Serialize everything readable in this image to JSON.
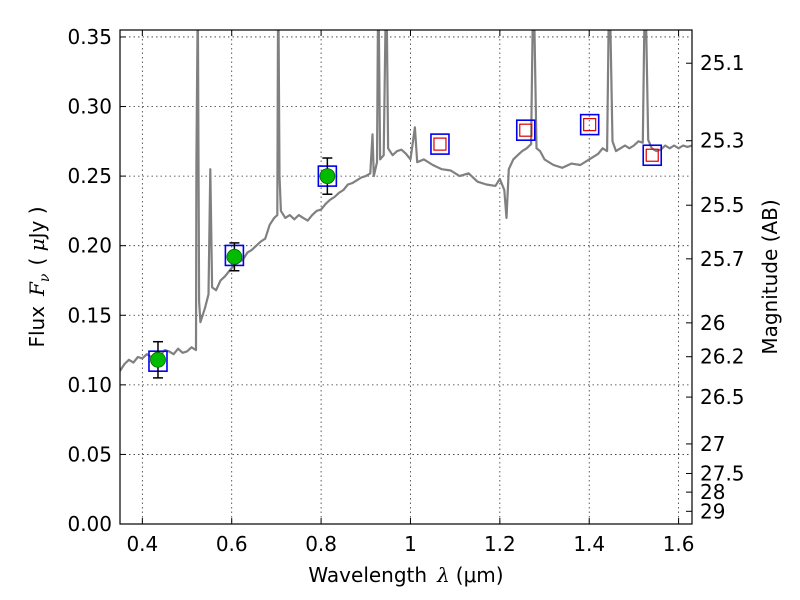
{
  "chart_data": {
    "type": "scatter",
    "x_axis": {
      "label_prefix": "Wavelength",
      "label_symbol": "λ",
      "label_unit": "(μm)",
      "range": [
        0.35,
        1.63
      ],
      "ticks": [
        {
          "value": 0.4,
          "label": "0.4"
        },
        {
          "value": 0.6,
          "label": "0.6"
        },
        {
          "value": 0.8,
          "label": "0.8"
        },
        {
          "value": 1.0,
          "label": "1"
        },
        {
          "value": 1.2,
          "label": "1.2"
        },
        {
          "value": 1.4,
          "label": "1.4"
        },
        {
          "value": 1.6,
          "label": "1.6"
        }
      ]
    },
    "y_axis": {
      "label_prefix": "Flux",
      "label_symbol": "F",
      "label_subscript": "ν",
      "label_unit_open": "( ",
      "label_unit_mu": "μ",
      "label_unit_rest": "Jy )",
      "range": [
        0.0,
        0.355
      ],
      "ticks": [
        {
          "value": 0.0,
          "label": "0.00"
        },
        {
          "value": 0.05,
          "label": "0.05"
        },
        {
          "value": 0.1,
          "label": "0.10"
        },
        {
          "value": 0.15,
          "label": "0.15"
        },
        {
          "value": 0.2,
          "label": "0.20"
        },
        {
          "value": 0.25,
          "label": "0.25"
        },
        {
          "value": 0.3,
          "label": "0.30"
        },
        {
          "value": 0.35,
          "label": "0.35"
        }
      ]
    },
    "y2_axis": {
      "label": "Magnitude (AB)",
      "ticks": [
        {
          "mag": 25.1,
          "label": "25.1"
        },
        {
          "mag": 25.3,
          "label": "25.3"
        },
        {
          "mag": 25.5,
          "label": "25.5"
        },
        {
          "mag": 25.7,
          "label": "25.7"
        },
        {
          "mag": 26.0,
          "label": "26"
        },
        {
          "mag": 26.2,
          "label": "26.2"
        },
        {
          "mag": 26.5,
          "label": "26.5"
        },
        {
          "mag": 27.0,
          "label": "27"
        },
        {
          "mag": 27.5,
          "label": "27.5"
        },
        {
          "mag": 28.0,
          "label": "28"
        },
        {
          "mag": 29.0,
          "label": "29"
        }
      ]
    },
    "grid": true,
    "colors": {
      "template": "#808080",
      "model_marker": "#0000ee",
      "detection": "#00bb00",
      "upper_limit": "#dd0000",
      "error_bar": "#000000"
    },
    "template_spectrum": [
      [
        0.35,
        0.11
      ],
      [
        0.36,
        0.115
      ],
      [
        0.37,
        0.118
      ],
      [
        0.38,
        0.116
      ],
      [
        0.39,
        0.12
      ],
      [
        0.4,
        0.119
      ],
      [
        0.41,
        0.122
      ],
      [
        0.42,
        0.12
      ],
      [
        0.43,
        0.123
      ],
      [
        0.44,
        0.121
      ],
      [
        0.45,
        0.125
      ],
      [
        0.46,
        0.124
      ],
      [
        0.47,
        0.122
      ],
      [
        0.48,
        0.126
      ],
      [
        0.49,
        0.123
      ],
      [
        0.5,
        0.124
      ],
      [
        0.51,
        0.127
      ],
      [
        0.52,
        0.125
      ],
      [
        0.521,
        0.26
      ],
      [
        0.524,
        0.38
      ],
      [
        0.527,
        0.16
      ],
      [
        0.53,
        0.145
      ],
      [
        0.54,
        0.155
      ],
      [
        0.548,
        0.165
      ],
      [
        0.552,
        0.255
      ],
      [
        0.556,
        0.17
      ],
      [
        0.565,
        0.168
      ],
      [
        0.575,
        0.175
      ],
      [
        0.585,
        0.178
      ],
      [
        0.595,
        0.182
      ],
      [
        0.605,
        0.186
      ],
      [
        0.615,
        0.188
      ],
      [
        0.625,
        0.19
      ],
      [
        0.635,
        0.195
      ],
      [
        0.645,
        0.197
      ],
      [
        0.655,
        0.2
      ],
      [
        0.665,
        0.203
      ],
      [
        0.675,
        0.205
      ],
      [
        0.685,
        0.215
      ],
      [
        0.695,
        0.22
      ],
      [
        0.702,
        0.222
      ],
      [
        0.704,
        0.4
      ],
      [
        0.707,
        0.25
      ],
      [
        0.71,
        0.225
      ],
      [
        0.72,
        0.22
      ],
      [
        0.73,
        0.222
      ],
      [
        0.74,
        0.219
      ],
      [
        0.75,
        0.222
      ],
      [
        0.76,
        0.22
      ],
      [
        0.77,
        0.218
      ],
      [
        0.78,
        0.222
      ],
      [
        0.79,
        0.225
      ],
      [
        0.8,
        0.226
      ],
      [
        0.81,
        0.23
      ],
      [
        0.82,
        0.233
      ],
      [
        0.83,
        0.235
      ],
      [
        0.84,
        0.238
      ],
      [
        0.85,
        0.24
      ],
      [
        0.86,
        0.244
      ],
      [
        0.87,
        0.245
      ],
      [
        0.88,
        0.247
      ],
      [
        0.89,
        0.249
      ],
      [
        0.9,
        0.25
      ],
      [
        0.91,
        0.252
      ],
      [
        0.915,
        0.28
      ],
      [
        0.918,
        0.25
      ],
      [
        0.925,
        0.26
      ],
      [
        0.928,
        0.4
      ],
      [
        0.932,
        0.262
      ],
      [
        0.94,
        0.265
      ],
      [
        0.946,
        0.4
      ],
      [
        0.95,
        0.27
      ],
      [
        0.96,
        0.265
      ],
      [
        0.97,
        0.268
      ],
      [
        0.98,
        0.269
      ],
      [
        0.99,
        0.266
      ],
      [
        1.0,
        0.262
      ],
      [
        1.01,
        0.285
      ],
      [
        1.015,
        0.26
      ],
      [
        1.03,
        0.262
      ],
      [
        1.05,
        0.258
      ],
      [
        1.07,
        0.255
      ],
      [
        1.09,
        0.254
      ],
      [
        1.11,
        0.25
      ],
      [
        1.13,
        0.252
      ],
      [
        1.15,
        0.246
      ],
      [
        1.17,
        0.244
      ],
      [
        1.19,
        0.243
      ],
      [
        1.2,
        0.248
      ],
      [
        1.21,
        0.24
      ],
      [
        1.215,
        0.22
      ],
      [
        1.22,
        0.255
      ],
      [
        1.23,
        0.262
      ],
      [
        1.24,
        0.265
      ],
      [
        1.25,
        0.268
      ],
      [
        1.26,
        0.27
      ],
      [
        1.27,
        0.273
      ],
      [
        1.275,
        0.4
      ],
      [
        1.282,
        0.27
      ],
      [
        1.29,
        0.268
      ],
      [
        1.3,
        0.262
      ],
      [
        1.32,
        0.258
      ],
      [
        1.34,
        0.256
      ],
      [
        1.36,
        0.259
      ],
      [
        1.38,
        0.258
      ],
      [
        1.4,
        0.262
      ],
      [
        1.42,
        0.266
      ],
      [
        1.43,
        0.27
      ],
      [
        1.44,
        0.268
      ],
      [
        1.445,
        0.4
      ],
      [
        1.452,
        0.275
      ],
      [
        1.46,
        0.268
      ],
      [
        1.47,
        0.27
      ],
      [
        1.48,
        0.272
      ],
      [
        1.49,
        0.27
      ],
      [
        1.5,
        0.272
      ],
      [
        1.51,
        0.275
      ],
      [
        1.52,
        0.274
      ],
      [
        1.525,
        0.4
      ],
      [
        1.532,
        0.276
      ],
      [
        1.54,
        0.27
      ],
      [
        1.55,
        0.268
      ],
      [
        1.56,
        0.269
      ],
      [
        1.57,
        0.272
      ],
      [
        1.58,
        0.27
      ],
      [
        1.59,
        0.272
      ],
      [
        1.6,
        0.27
      ],
      [
        1.61,
        0.272
      ],
      [
        1.62,
        0.271
      ],
      [
        1.63,
        0.272
      ]
    ],
    "model_photometry": [
      {
        "x": 0.435,
        "y": 0.117
      },
      {
        "x": 0.606,
        "y": 0.193
      },
      {
        "x": 0.814,
        "y": 0.25
      },
      {
        "x": 1.066,
        "y": 0.273
      },
      {
        "x": 1.258,
        "y": 0.283
      },
      {
        "x": 1.401,
        "y": 0.287
      },
      {
        "x": 1.541,
        "y": 0.265
      }
    ],
    "detections": [
      {
        "x": 0.435,
        "y": 0.118,
        "err": 0.013
      },
      {
        "x": 0.606,
        "y": 0.192,
        "err": 0.01
      },
      {
        "x": 0.814,
        "y": 0.25,
        "err": 0.013
      }
    ],
    "upper_limits": [
      {
        "x": 1.066,
        "y": 0.273
      },
      {
        "x": 1.258,
        "y": 0.283
      },
      {
        "x": 1.401,
        "y": 0.287
      },
      {
        "x": 1.541,
        "y": 0.265
      }
    ]
  }
}
